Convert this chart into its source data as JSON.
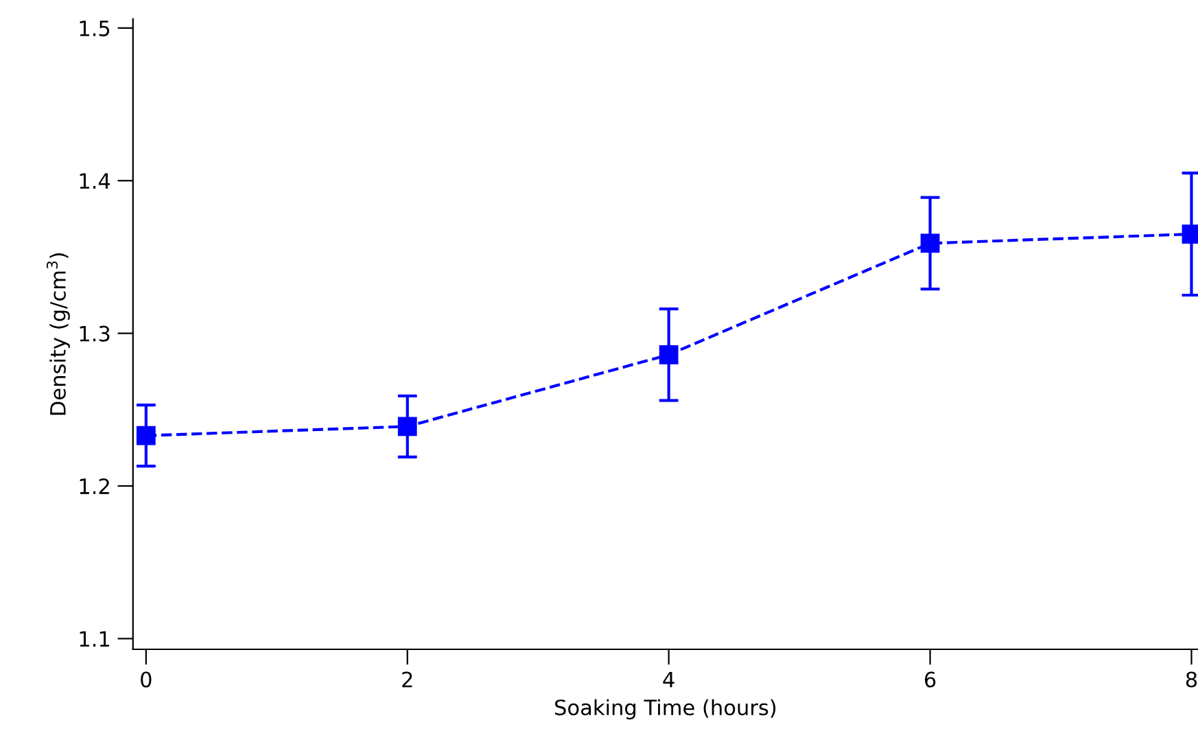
{
  "chart_data": {
    "type": "line",
    "xlabel": "Soaking Time (hours)",
    "ylabel": "Density (g/cm$^{3}$)",
    "x": [
      0,
      2,
      4,
      6,
      8
    ],
    "series": [
      {
        "color": "#0000ff",
        "values": [
          1.233,
          1.239,
          1.286,
          1.359,
          1.365
        ],
        "errors": [
          0.02,
          0.02,
          0.03,
          0.03,
          0.04
        ]
      }
    ],
    "xlim": [
      -0.1,
      8.05
    ],
    "xticks": [
      0,
      2,
      4,
      6,
      8
    ],
    "ylim": [
      1.093,
      1.506
    ],
    "yticks": [
      1.1,
      1.2,
      1.3,
      1.4,
      1.5
    ],
    "marker": "square",
    "line_style": "dashed",
    "grid": false,
    "legend": false
  }
}
